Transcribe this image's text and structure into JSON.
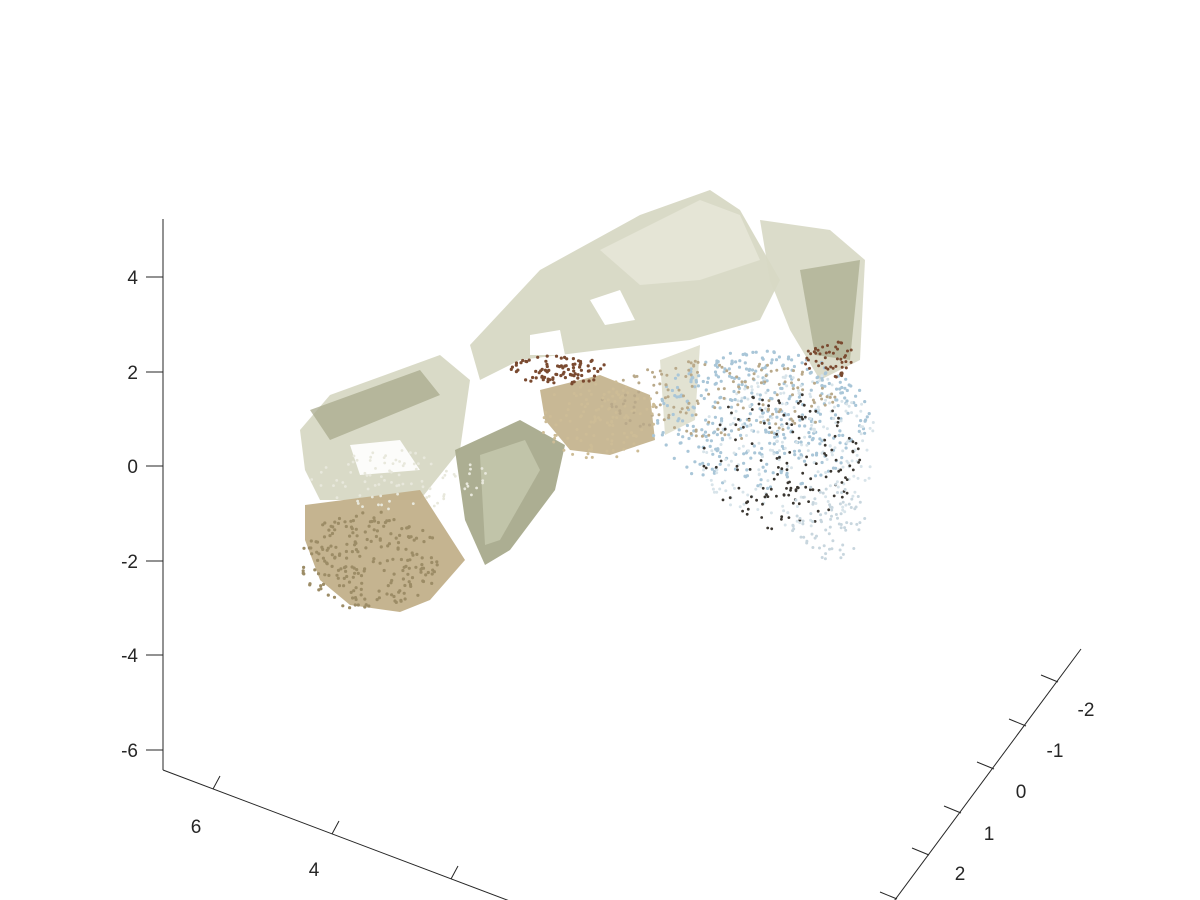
{
  "chart_data": {
    "type": "scatter",
    "subtype": "3d-point-cloud",
    "title": "",
    "xlabel": "",
    "ylabel": "",
    "zlabel": "",
    "grid": false,
    "legend": "none",
    "axes": {
      "z": {
        "ticks": [
          "4",
          "2",
          "0",
          "-2",
          "-4",
          "-6"
        ],
        "range": [
          -6.5,
          5
        ]
      },
      "x": {
        "ticks": [
          "6",
          "4"
        ],
        "range": [
          2.5,
          7
        ]
      },
      "y": {
        "ticks": [
          "-2",
          "-1",
          "0",
          "1",
          "2"
        ],
        "range": [
          -2.5,
          2.5
        ]
      }
    },
    "colors": {
      "wall_light": "#d7d8c4",
      "wall_shadow": "#a8aa8c",
      "floor_beige": "#c2b08a",
      "floor_dark": "#9c8c66",
      "blue_points": "#a9c6d8",
      "dark_points": "#3a3630",
      "brown_points": "#7a4a30"
    }
  }
}
